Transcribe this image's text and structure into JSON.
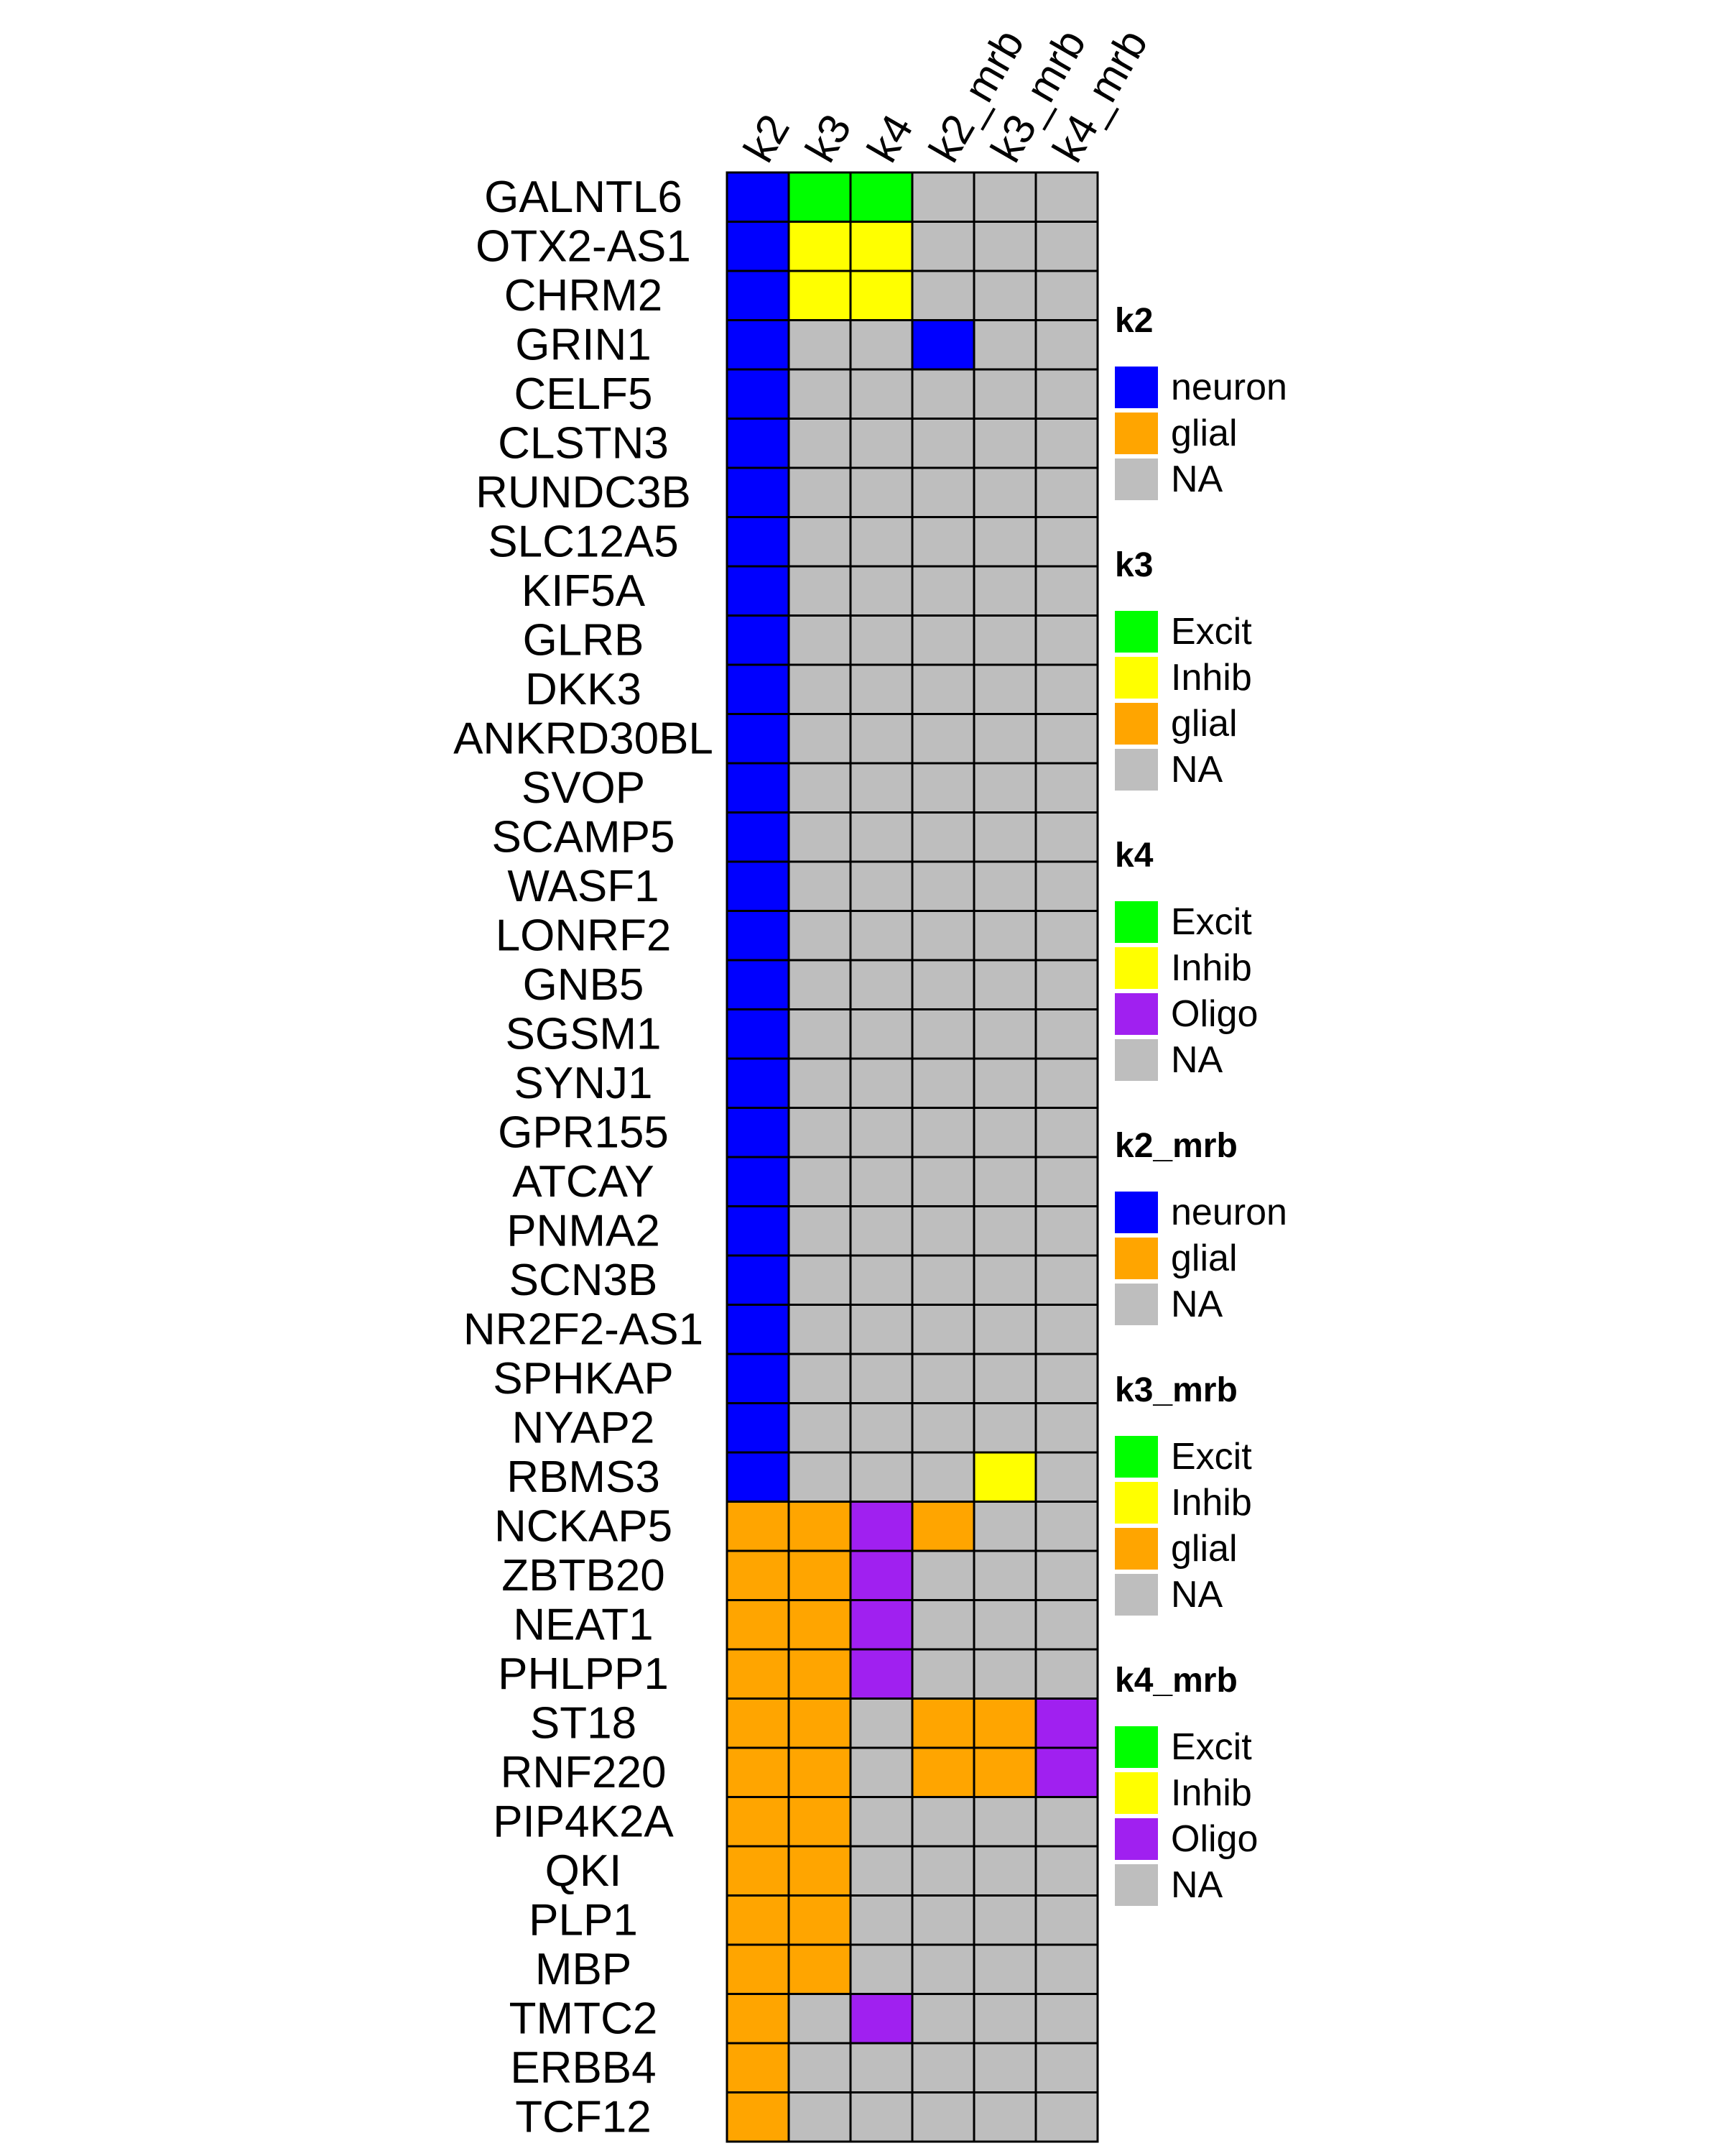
{
  "chart_data": {
    "type": "heatmap",
    "columns": [
      "k2",
      "k3",
      "k4",
      "k2_mrb",
      "k3_mrb",
      "k4_mrb"
    ],
    "rows": [
      "GALNTL6",
      "OTX2-AS1",
      "CHRM2",
      "GRIN1",
      "CELF5",
      "CLSTN3",
      "RUNDC3B",
      "SLC12A5",
      "KIF5A",
      "GLRB",
      "DKK3",
      "ANKRD30BL",
      "SVOP",
      "SCAMP5",
      "WASF1",
      "LONRF2",
      "GNB5",
      "SGSM1",
      "SYNJ1",
      "GPR155",
      "ATCAY",
      "PNMA2",
      "SCN3B",
      "NR2F2-AS1",
      "SPHKAP",
      "NYAP2",
      "RBMS3",
      "NCKAP5",
      "ZBTB20",
      "NEAT1",
      "PHLPP1",
      "ST18",
      "RNF220",
      "PIP4K2A",
      "QKI",
      "PLP1",
      "MBP",
      "TMTC2",
      "ERBB4",
      "TCF12"
    ],
    "values": [
      [
        "neuron",
        "Excit",
        "Excit",
        "NA",
        "NA",
        "NA"
      ],
      [
        "neuron",
        "Inhib",
        "Inhib",
        "NA",
        "NA",
        "NA"
      ],
      [
        "neuron",
        "Inhib",
        "Inhib",
        "NA",
        "NA",
        "NA"
      ],
      [
        "neuron",
        "NA",
        "NA",
        "neuron",
        "NA",
        "NA"
      ],
      [
        "neuron",
        "NA",
        "NA",
        "NA",
        "NA",
        "NA"
      ],
      [
        "neuron",
        "NA",
        "NA",
        "NA",
        "NA",
        "NA"
      ],
      [
        "neuron",
        "NA",
        "NA",
        "NA",
        "NA",
        "NA"
      ],
      [
        "neuron",
        "NA",
        "NA",
        "NA",
        "NA",
        "NA"
      ],
      [
        "neuron",
        "NA",
        "NA",
        "NA",
        "NA",
        "NA"
      ],
      [
        "neuron",
        "NA",
        "NA",
        "NA",
        "NA",
        "NA"
      ],
      [
        "neuron",
        "NA",
        "NA",
        "NA",
        "NA",
        "NA"
      ],
      [
        "neuron",
        "NA",
        "NA",
        "NA",
        "NA",
        "NA"
      ],
      [
        "neuron",
        "NA",
        "NA",
        "NA",
        "NA",
        "NA"
      ],
      [
        "neuron",
        "NA",
        "NA",
        "NA",
        "NA",
        "NA"
      ],
      [
        "neuron",
        "NA",
        "NA",
        "NA",
        "NA",
        "NA"
      ],
      [
        "neuron",
        "NA",
        "NA",
        "NA",
        "NA",
        "NA"
      ],
      [
        "neuron",
        "NA",
        "NA",
        "NA",
        "NA",
        "NA"
      ],
      [
        "neuron",
        "NA",
        "NA",
        "NA",
        "NA",
        "NA"
      ],
      [
        "neuron",
        "NA",
        "NA",
        "NA",
        "NA",
        "NA"
      ],
      [
        "neuron",
        "NA",
        "NA",
        "NA",
        "NA",
        "NA"
      ],
      [
        "neuron",
        "NA",
        "NA",
        "NA",
        "NA",
        "NA"
      ],
      [
        "neuron",
        "NA",
        "NA",
        "NA",
        "NA",
        "NA"
      ],
      [
        "neuron",
        "NA",
        "NA",
        "NA",
        "NA",
        "NA"
      ],
      [
        "neuron",
        "NA",
        "NA",
        "NA",
        "NA",
        "NA"
      ],
      [
        "neuron",
        "NA",
        "NA",
        "NA",
        "NA",
        "NA"
      ],
      [
        "neuron",
        "NA",
        "NA",
        "NA",
        "NA",
        "NA"
      ],
      [
        "neuron",
        "NA",
        "NA",
        "NA",
        "Inhib",
        "NA"
      ],
      [
        "glial",
        "glial",
        "Oligo",
        "glial",
        "NA",
        "NA"
      ],
      [
        "glial",
        "glial",
        "Oligo",
        "NA",
        "NA",
        "NA"
      ],
      [
        "glial",
        "glial",
        "Oligo",
        "NA",
        "NA",
        "NA"
      ],
      [
        "glial",
        "glial",
        "Oligo",
        "NA",
        "NA",
        "NA"
      ],
      [
        "glial",
        "glial",
        "NA",
        "glial",
        "glial",
        "Oligo"
      ],
      [
        "glial",
        "glial",
        "NA",
        "glial",
        "glial",
        "Oligo"
      ],
      [
        "glial",
        "glial",
        "NA",
        "NA",
        "NA",
        "NA"
      ],
      [
        "glial",
        "glial",
        "NA",
        "NA",
        "NA",
        "NA"
      ],
      [
        "glial",
        "glial",
        "NA",
        "NA",
        "NA",
        "NA"
      ],
      [
        "glial",
        "glial",
        "NA",
        "NA",
        "NA",
        "NA"
      ],
      [
        "glial",
        "NA",
        "Oligo",
        "NA",
        "NA",
        "NA"
      ],
      [
        "glial",
        "NA",
        "NA",
        "NA",
        "NA",
        "NA"
      ],
      [
        "glial",
        "NA",
        "NA",
        "NA",
        "NA",
        "NA"
      ]
    ],
    "colors": {
      "neuron": "#0000FF",
      "glial": "#FFA500",
      "Excit": "#00FF00",
      "Inhib": "#FFFF00",
      "Oligo": "#A020F0",
      "NA": "#BEBEBE"
    },
    "legends": [
      {
        "title": "k2",
        "levels": [
          "neuron",
          "glial",
          "NA"
        ]
      },
      {
        "title": "k3",
        "levels": [
          "Excit",
          "Inhib",
          "glial",
          "NA"
        ]
      },
      {
        "title": "k4",
        "levels": [
          "Excit",
          "Inhib",
          "Oligo",
          "NA"
        ]
      },
      {
        "title": "k2_mrb",
        "levels": [
          "neuron",
          "glial",
          "NA"
        ]
      },
      {
        "title": "k3_mrb",
        "levels": [
          "Excit",
          "Inhib",
          "glial",
          "NA"
        ]
      },
      {
        "title": "k4_mrb",
        "levels": [
          "Excit",
          "Inhib",
          "Oligo",
          "NA"
        ]
      }
    ],
    "legend_placement": "right"
  }
}
